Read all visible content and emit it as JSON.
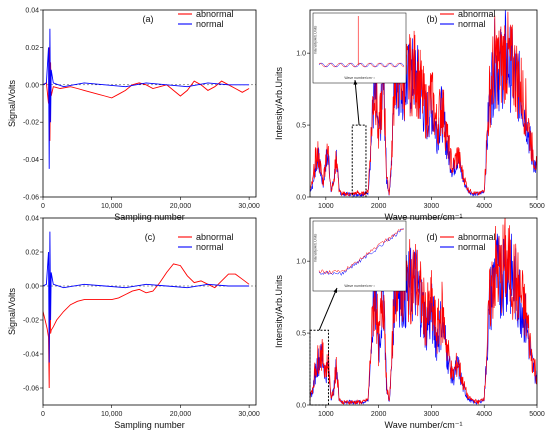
{
  "chart_data": [
    {
      "id": "a",
      "type": "line",
      "panel_label": "(a)",
      "xlabel": "Sampling number",
      "ylabel": "Signal/Volts",
      "xlim": [
        0,
        31000
      ],
      "ylim": [
        -0.06,
        0.04
      ],
      "xticks": [
        0,
        10000,
        20000,
        30000
      ],
      "xtick_labels": [
        "0",
        "10,000",
        "20,000",
        "30,000"
      ],
      "yticks": [
        -0.06,
        -0.04,
        -0.02,
        0.0,
        0.02,
        0.04
      ],
      "ytick_labels": [
        "-0.06",
        "-0.04",
        "-0.02",
        "0.00",
        "0.02",
        "0.04"
      ],
      "legend_position": "top-right",
      "series": [
        {
          "name": "abnormal",
          "color": "#ff0000",
          "x": [
            0,
            500,
            800,
            900,
            1000,
            1100,
            1200,
            1500,
            2500,
            4000,
            5000,
            6000,
            7000,
            8000,
            9000,
            10000,
            11000,
            12000,
            13000,
            14000,
            15000,
            16000,
            17000,
            18000,
            19000,
            20000,
            21000,
            22000,
            23000,
            24000,
            25000,
            26000,
            27000,
            28000,
            29000,
            30000
          ],
          "y": [
            0.0,
            0.001,
            -0.01,
            0.02,
            -0.03,
            0.012,
            -0.006,
            -0.001,
            -0.002,
            -0.001,
            -0.002,
            -0.003,
            -0.004,
            -0.005,
            -0.006,
            -0.007,
            -0.005,
            -0.003,
            0.0,
            0.001,
            0.0,
            -0.002,
            -0.001,
            0.0,
            -0.003,
            -0.006,
            -0.003,
            0.002,
            0.0,
            -0.003,
            -0.001,
            0.002,
            0.0,
            -0.002,
            -0.004,
            -0.002
          ]
        },
        {
          "name": "normal",
          "color": "#0000ff",
          "x": [
            0,
            500,
            800,
            900,
            1000,
            1100,
            1200,
            1500,
            3000,
            6000,
            9000,
            12000,
            15000,
            18000,
            21000,
            24000,
            27000,
            30000
          ],
          "y": [
            0.0,
            0.001,
            0.02,
            -0.045,
            0.03,
            -0.02,
            0.008,
            0.001,
            -0.001,
            0.001,
            0.0,
            -0.001,
            0.001,
            0.0,
            -0.001,
            0.001,
            0.0,
            0.0
          ]
        }
      ]
    },
    {
      "id": "b",
      "type": "line",
      "panel_label": "(b)",
      "xlabel": "Wave number/cm⁻¹",
      "ylabel": "Intensity/Arb.Units",
      "xlim": [
        700,
        5000
      ],
      "ylim": [
        0,
        1.3
      ],
      "xticks": [
        1000,
        2000,
        3000,
        4000,
        5000
      ],
      "xtick_labels": [
        "1000",
        "2000",
        "3000",
        "4000",
        "5000"
      ],
      "yticks": [
        0.0,
        0.5,
        1.0
      ],
      "ytick_labels": [
        "0.0",
        "0.5",
        "1.0"
      ],
      "legend_position": "top-right",
      "inset_ylabel": "Intensity/Arb.Units",
      "inset_xlabel": "Wave number/cm⁻¹",
      "annotation": "dashed box around 1500–1750 cm⁻¹ with arrow pointing to inset",
      "series": [
        {
          "name": "abnormal",
          "color": "#ff0000",
          "x": [
            700,
            750,
            800,
            850,
            900,
            950,
            1000,
            1050,
            1100,
            1150,
            1200,
            1250,
            1300,
            1400,
            1500,
            1600,
            1700,
            1800,
            1900,
            1950,
            2000,
            2050,
            2100,
            2150,
            2200,
            2250,
            2300,
            2350,
            2400,
            2500,
            2600,
            2700,
            2800,
            2900,
            3000,
            3100,
            3200,
            3300,
            3400,
            3500,
            3600,
            3700,
            3800,
            3900,
            4000,
            4100,
            4200,
            4300,
            4400,
            4500,
            4600,
            4700,
            4800,
            4900,
            5000
          ],
          "y": [
            0.05,
            0.1,
            0.25,
            0.3,
            0.2,
            0.1,
            0.28,
            0.3,
            0.05,
            0.1,
            0.3,
            0.05,
            0.02,
            0.02,
            0.02,
            0.03,
            0.02,
            0.04,
            0.7,
            0.75,
            0.4,
            0.65,
            0.8,
            0.15,
            0.02,
            0.3,
            0.85,
            0.9,
            0.85,
            0.8,
            0.85,
            0.88,
            0.75,
            0.6,
            0.7,
            0.5,
            0.65,
            0.4,
            0.2,
            0.3,
            0.15,
            0.05,
            0.03,
            0.02,
            0.05,
            0.7,
            0.95,
            0.9,
            1.0,
            0.92,
            0.85,
            0.75,
            0.6,
            0.35,
            0.2
          ]
        },
        {
          "name": "normal",
          "color": "#0000ff",
          "x": [
            700,
            750,
            800,
            850,
            900,
            950,
            1000,
            1050,
            1100,
            1150,
            1200,
            1250,
            1300,
            1400,
            1500,
            1600,
            1700,
            1800,
            1900,
            1950,
            2000,
            2050,
            2100,
            2150,
            2200,
            2250,
            2300,
            2350,
            2400,
            2500,
            2600,
            2700,
            2800,
            2900,
            3000,
            3100,
            3200,
            3300,
            3400,
            3500,
            3600,
            3700,
            3800,
            3900,
            4000,
            4100,
            4200,
            4300,
            4400,
            4500,
            4600,
            4700,
            4800,
            4900,
            5000
          ],
          "y": [
            0.05,
            0.08,
            0.2,
            0.28,
            0.18,
            0.08,
            0.25,
            0.28,
            0.05,
            0.1,
            0.28,
            0.05,
            0.02,
            0.02,
            0.02,
            0.02,
            0.02,
            0.03,
            0.65,
            0.7,
            0.38,
            0.6,
            0.78,
            0.12,
            0.02,
            0.28,
            0.82,
            0.88,
            0.82,
            0.78,
            0.82,
            0.85,
            0.72,
            0.55,
            0.65,
            0.45,
            0.6,
            0.35,
            0.18,
            0.28,
            0.12,
            0.04,
            0.02,
            0.02,
            0.04,
            0.68,
            0.93,
            0.88,
            0.98,
            0.9,
            0.82,
            0.72,
            0.55,
            0.3,
            0.18
          ]
        }
      ]
    },
    {
      "id": "c",
      "type": "line",
      "panel_label": "(c)",
      "xlabel": "Sampling number",
      "ylabel": "Signal/Volts",
      "xlim": [
        0,
        31000
      ],
      "ylim": [
        -0.07,
        0.04
      ],
      "xticks": [
        0,
        10000,
        20000,
        30000
      ],
      "xtick_labels": [
        "0",
        "10,000",
        "20,000",
        "30,000"
      ],
      "yticks": [
        -0.06,
        -0.04,
        -0.02,
        0.0,
        0.02,
        0.04
      ],
      "ytick_labels": [
        "-0.06",
        "-0.04",
        "-0.02",
        "0.00",
        "0.02",
        "0.04"
      ],
      "legend_position": "top-right",
      "series": [
        {
          "name": "abnormal",
          "color": "#ff0000",
          "x": [
            0,
            300,
            600,
            800,
            900,
            1000,
            1100,
            1200,
            1500,
            2000,
            3000,
            4000,
            5000,
            6000,
            7000,
            8000,
            9000,
            10000,
            11000,
            12000,
            13000,
            14000,
            15000,
            16000,
            17000,
            18000,
            19000,
            20000,
            21000,
            22000,
            23000,
            24000,
            25000,
            26000,
            27000,
            28000,
            29000,
            30000
          ],
          "y": [
            -0.015,
            -0.02,
            -0.025,
            -0.03,
            -0.06,
            0.01,
            -0.028,
            -0.026,
            -0.024,
            -0.02,
            -0.015,
            -0.011,
            -0.009,
            -0.008,
            -0.008,
            -0.008,
            -0.008,
            -0.008,
            -0.007,
            -0.005,
            -0.003,
            -0.002,
            -0.004,
            -0.003,
            0.002,
            0.008,
            0.013,
            0.012,
            0.006,
            0.002,
            0.003,
            0.001,
            -0.001,
            0.003,
            0.007,
            0.007,
            0.004,
            0.001
          ]
        },
        {
          "name": "normal",
          "color": "#0000ff",
          "x": [
            0,
            500,
            800,
            900,
            1000,
            1100,
            1200,
            1500,
            3000,
            6000,
            9000,
            12000,
            15000,
            18000,
            21000,
            24000,
            27000,
            30000
          ],
          "y": [
            0.0,
            0.001,
            0.02,
            -0.045,
            0.032,
            -0.02,
            0.008,
            0.001,
            -0.001,
            0.001,
            0.0,
            -0.001,
            0.001,
            0.0,
            -0.001,
            0.001,
            0.0,
            0.0
          ]
        }
      ]
    },
    {
      "id": "d",
      "type": "line",
      "panel_label": "(d)",
      "xlabel": "Wave number/cm⁻¹",
      "ylabel": "Intensity/Arb.Units",
      "xlim": [
        700,
        5000
      ],
      "ylim": [
        0,
        1.3
      ],
      "xticks": [
        1000,
        2000,
        3000,
        4000,
        5000
      ],
      "xtick_labels": [
        "1000",
        "2000",
        "3000",
        "4000",
        "5000"
      ],
      "yticks": [
        0.0,
        0.5,
        1.0
      ],
      "ytick_labels": [
        "0.0",
        "0.5",
        "1.0"
      ],
      "legend_position": "top-right",
      "inset_ylabel": "Intensity/Arb.Units",
      "inset_xlabel": "Wave number/cm⁻¹",
      "annotation": "dashed box around 700–1050 cm⁻¹ with arrow pointing to inset",
      "series": [
        {
          "name": "abnormal",
          "color": "#ff0000",
          "x": [
            700,
            750,
            800,
            850,
            900,
            950,
            1000,
            1050,
            1100,
            1150,
            1200,
            1250,
            1300,
            1400,
            1500,
            1600,
            1700,
            1800,
            1900,
            1950,
            2000,
            2050,
            2100,
            2150,
            2200,
            2250,
            2300,
            2350,
            2400,
            2500,
            2600,
            2700,
            2800,
            2900,
            3000,
            3100,
            3200,
            3300,
            3400,
            3500,
            3600,
            3700,
            3800,
            3900,
            4000,
            4100,
            4200,
            4300,
            4400,
            4500,
            4600,
            4700,
            4800,
            4900,
            5000
          ],
          "y": [
            0.05,
            0.12,
            0.25,
            0.32,
            0.36,
            0.33,
            0.25,
            0.3,
            0.05,
            0.1,
            0.3,
            0.05,
            0.02,
            0.02,
            0.02,
            0.02,
            0.02,
            0.04,
            0.7,
            0.75,
            0.4,
            0.65,
            0.8,
            0.15,
            0.02,
            0.3,
            0.85,
            0.9,
            0.85,
            0.82,
            0.86,
            0.88,
            0.75,
            0.6,
            0.7,
            0.5,
            0.65,
            0.4,
            0.2,
            0.3,
            0.15,
            0.05,
            0.03,
            0.02,
            0.05,
            0.7,
            0.95,
            0.9,
            1.0,
            0.92,
            0.85,
            0.75,
            0.6,
            0.35,
            0.2
          ]
        },
        {
          "name": "normal",
          "color": "#0000ff",
          "x": [
            700,
            750,
            800,
            850,
            900,
            950,
            1000,
            1050,
            1100,
            1150,
            1200,
            1250,
            1300,
            1400,
            1500,
            1600,
            1700,
            1800,
            1900,
            1950,
            2000,
            2050,
            2100,
            2150,
            2200,
            2250,
            2300,
            2350,
            2400,
            2500,
            2600,
            2700,
            2800,
            2900,
            3000,
            3100,
            3200,
            3300,
            3400,
            3500,
            3600,
            3700,
            3800,
            3900,
            4000,
            4100,
            4200,
            4300,
            4400,
            4500,
            4600,
            4700,
            4800,
            4900,
            5000
          ],
          "y": [
            0.05,
            0.1,
            0.22,
            0.3,
            0.33,
            0.3,
            0.22,
            0.28,
            0.05,
            0.1,
            0.28,
            0.05,
            0.02,
            0.02,
            0.02,
            0.02,
            0.02,
            0.03,
            0.65,
            0.7,
            0.38,
            0.6,
            0.78,
            0.12,
            0.02,
            0.28,
            0.82,
            0.88,
            0.82,
            0.78,
            0.82,
            0.85,
            0.72,
            0.55,
            0.65,
            0.45,
            0.6,
            0.35,
            0.18,
            0.28,
            0.12,
            0.04,
            0.02,
            0.02,
            0.04,
            0.68,
            0.93,
            0.88,
            0.98,
            0.9,
            0.82,
            0.72,
            0.55,
            0.3,
            0.18
          ]
        }
      ]
    }
  ]
}
